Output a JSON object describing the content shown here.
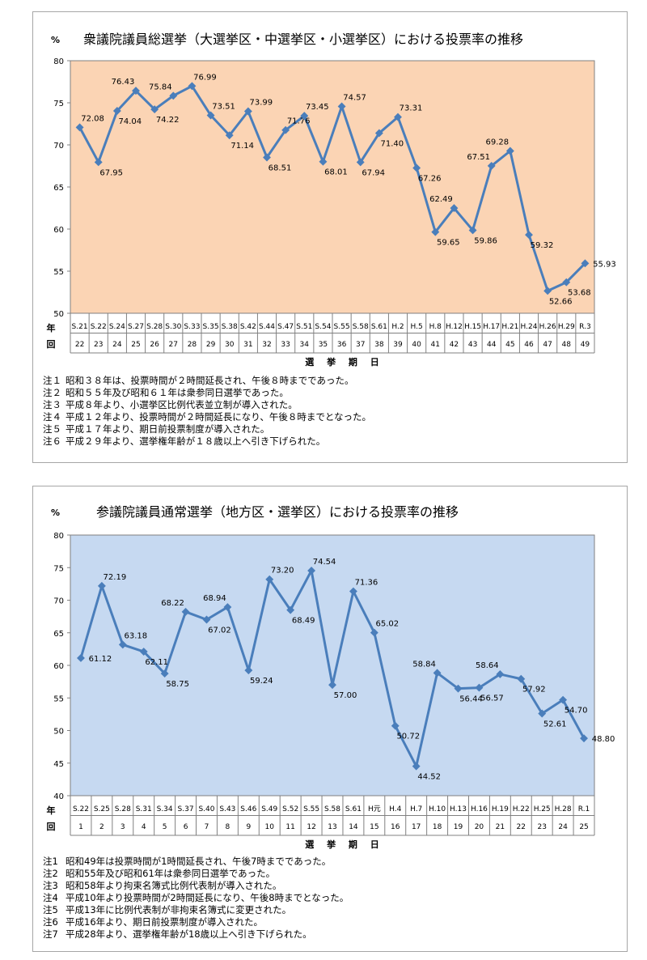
{
  "charts": [
    {
      "unit": "%",
      "title": "衆議院議員総選挙（大選挙区・中選挙区・小選挙区）における投票率の推移",
      "row_labels": [
        "年",
        "回"
      ],
      "xaxis_label": "選 挙 期 日",
      "bg_color": "#fbd4b4",
      "line_color": "#4a7ebb",
      "notes": [
        {
          "label": "注１",
          "text": "昭和３８年は、投票時間が２時間延長され、午後８時までであった。"
        },
        {
          "label": "注２",
          "text": "昭和５５年及び昭和６１年は衆参同日選挙であった。"
        },
        {
          "label": "注３",
          "text": "平成８年より、小選挙区比例代表並立制が導入された。"
        },
        {
          "label": "注４",
          "text": "平成１２年より、投票時間が２時間延長になり、午後８時までとなった。"
        },
        {
          "label": "注５",
          "text": "平成１７年より、期日前投票制度が導入された。"
        },
        {
          "label": "注６",
          "text": "平成２９年より、選挙権年齢が１８歳以上へ引き下げられた。"
        }
      ]
    },
    {
      "unit": "%",
      "title": "参議院議員通常選挙（地方区・選挙区）における投票率の推移",
      "row_labels": [
        "年",
        "回"
      ],
      "xaxis_label": "選 挙 期 日",
      "bg_color": "#c6d9f1",
      "line_color": "#4a7ebb",
      "notes": [
        {
          "label": "注1",
          "text": "昭和49年は投票時間が1時間延長され、午後7時までであった。"
        },
        {
          "label": "注2",
          "text": "昭和55年及び昭和61年は衆参同日選挙であった。"
        },
        {
          "label": "注3",
          "text": "昭和58年より拘束名簿式比例代表制が導入された。"
        },
        {
          "label": "注4",
          "text": "平成10年より投票時間が2時間延長になり、午後8時までとなった。"
        },
        {
          "label": "注5",
          "text": "平成13年に比例代表制が非拘束名簿式に変更された。"
        },
        {
          "label": "注6",
          "text": "平成16年より、期日前投票制度が導入された。"
        },
        {
          "label": "注7",
          "text": "平成28年より、選挙権年齢が18歳以上へ引き下げられた。"
        }
      ]
    }
  ],
  "chart_data": [
    {
      "type": "line",
      "title": "衆議院議員総選挙（大選挙区・中選挙区・小選挙区）における投票率の推移",
      "ylabel": "%",
      "xlabel": "選 挙 期 日",
      "ylim": [
        50,
        80
      ],
      "yticks": [
        50,
        55,
        60,
        65,
        70,
        75,
        80
      ],
      "grid": false,
      "categories": [
        "S.21",
        "S.22",
        "S.24",
        "S.27",
        "S.28",
        "S.30",
        "S.33",
        "S.35",
        "S.38",
        "S.42",
        "S.44",
        "S.47",
        "S.51",
        "S.54",
        "S.55",
        "S.58",
        "S.61",
        "H.2",
        "H.5",
        "H.8",
        "H.12",
        "H.15",
        "H.17",
        "H.21",
        "H.24",
        "H.26",
        "H.29",
        "R.3"
      ],
      "rounds": [
        "22",
        "23",
        "24",
        "25",
        "26",
        "27",
        "28",
        "29",
        "30",
        "31",
        "32",
        "33",
        "34",
        "35",
        "36",
        "37",
        "38",
        "39",
        "40",
        "41",
        "42",
        "43",
        "44",
        "45",
        "46",
        "47",
        "48",
        "49"
      ],
      "values": [
        72.08,
        67.95,
        74.04,
        76.43,
        74.22,
        75.84,
        76.99,
        73.51,
        71.14,
        73.99,
        68.51,
        71.76,
        73.45,
        68.01,
        74.57,
        67.94,
        71.4,
        73.31,
        67.26,
        59.65,
        62.49,
        59.86,
        67.51,
        69.28,
        59.32,
        52.66,
        53.68,
        55.93
      ],
      "data_labels": [
        "72.08",
        "67.95",
        "74.04",
        "76.43",
        "74.22",
        "75.84",
        "76.99",
        "73.51",
        "71.14",
        "73.99",
        "68.51",
        "71.76",
        "73.45",
        "68.01",
        "74.57",
        "67.94",
        "71.40",
        "73.31",
        "67.26",
        "59.65",
        "62.49",
        "59.86",
        "67.51",
        "69.28",
        "59.32",
        "52.66",
        "53.68",
        "55.93"
      ]
    },
    {
      "type": "line",
      "title": "参議院議員通常選挙（地方区・選挙区）における投票率の推移",
      "ylabel": "%",
      "xlabel": "選 挙 期 日",
      "ylim": [
        40,
        80
      ],
      "yticks": [
        40,
        45,
        50,
        55,
        60,
        65,
        70,
        75,
        80
      ],
      "grid": false,
      "categories": [
        "S.22",
        "S.25",
        "S.28",
        "S.31",
        "S.34",
        "S.37",
        "S.40",
        "S.43",
        "S.46",
        "S.49",
        "S.52",
        "S.55",
        "S.58",
        "S.61",
        "H元",
        "H.4",
        "H.7",
        "H.10",
        "H.13",
        "H.16",
        "H.19",
        "H.22",
        "H.25",
        "H.28",
        "R.1"
      ],
      "rounds": [
        "1",
        "2",
        "3",
        "4",
        "5",
        "6",
        "7",
        "8",
        "9",
        "10",
        "11",
        "12",
        "13",
        "14",
        "15",
        "16",
        "17",
        "18",
        "19",
        "20",
        "21",
        "22",
        "23",
        "24",
        "25"
      ],
      "values": [
        61.12,
        72.19,
        63.18,
        62.11,
        58.75,
        68.22,
        67.02,
        68.94,
        59.24,
        73.2,
        68.49,
        74.54,
        57.0,
        71.36,
        65.02,
        50.72,
        44.52,
        58.84,
        56.44,
        56.57,
        58.64,
        57.92,
        52.61,
        54.7,
        48.8
      ],
      "data_labels": [
        "61.12",
        "72.19",
        "63.18",
        "62.11",
        "58.75",
        "68.22",
        "67.02",
        "68.94",
        "59.24",
        "73.20",
        "68.49",
        "74.54",
        "57.00",
        "71.36",
        "65.02",
        "50.72",
        "44.52",
        "58.84",
        "56.44",
        "56.57",
        "58.64",
        "57.92",
        "52.61",
        "54.70",
        "48.80"
      ]
    }
  ]
}
